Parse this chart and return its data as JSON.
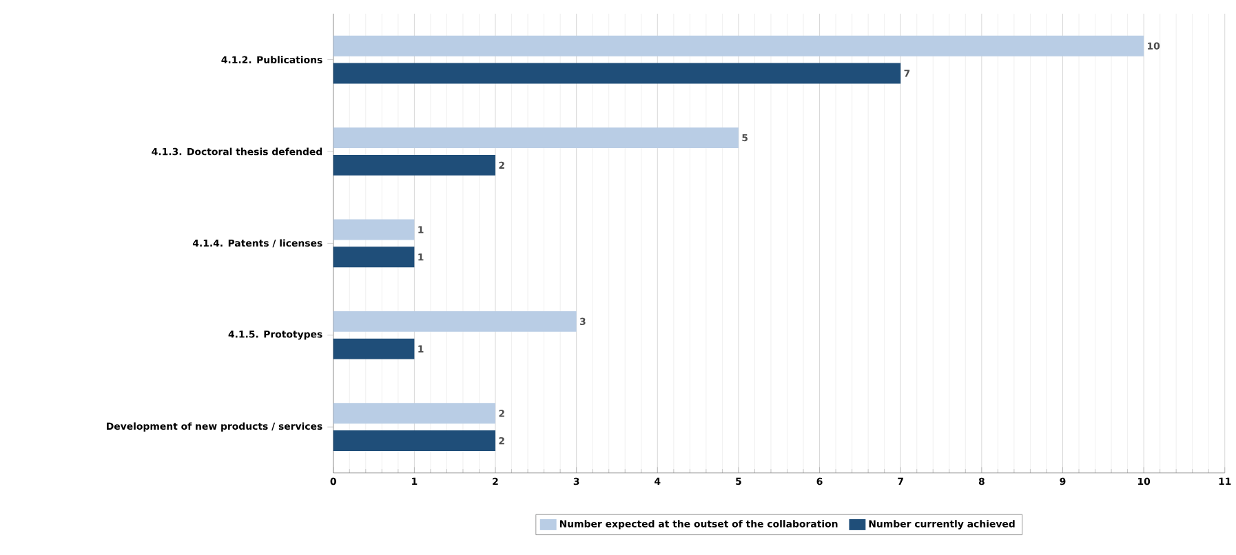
{
  "chart_data": {
    "type": "bar",
    "orientation": "horizontal",
    "categories": [
      "4.1.2. Publications",
      "4.1.3. Doctoral thesis defended",
      "4.1.4. Patents / licenses",
      "4.1.5. Prototypes",
      "Development of new products / services"
    ],
    "series": [
      {
        "name": "Number expected at the outset of the collaboration",
        "color": "#b9cde5",
        "values": [
          10,
          5,
          1,
          3,
          2
        ]
      },
      {
        "name": "Number currently achieved",
        "color": "#1f4e79",
        "values": [
          7,
          2,
          1,
          1,
          2
        ]
      }
    ],
    "xlim": [
      0,
      11
    ],
    "xticks": [
      0,
      1,
      2,
      3,
      4,
      5,
      6,
      7,
      8,
      9,
      10,
      11
    ],
    "grid": "x",
    "legend": "bottom",
    "data_labels": true
  }
}
